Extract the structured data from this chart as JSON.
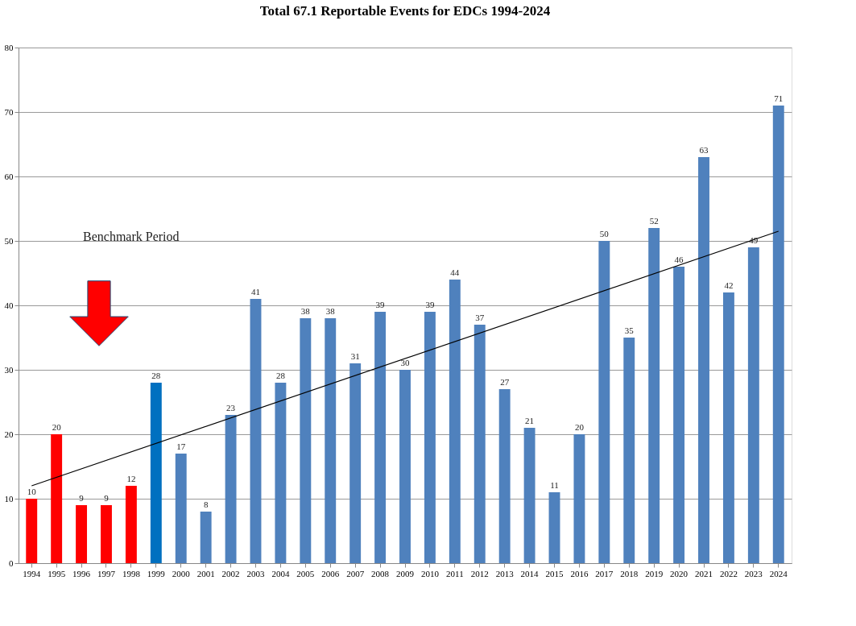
{
  "chart_data": {
    "type": "bar",
    "title": "Total 67.1 Reportable Events for EDCs 1994-2024",
    "categories": [
      "1994",
      "1995",
      "1996",
      "1997",
      "1998",
      "1999",
      "2000",
      "2001",
      "2002",
      "2003",
      "2004",
      "2005",
      "2006",
      "2007",
      "2008",
      "2009",
      "2010",
      "2011",
      "2012",
      "2013",
      "2014",
      "2015",
      "2016",
      "2017",
      "2018",
      "2019",
      "2020",
      "2021",
      "2022",
      "2023",
      "2024"
    ],
    "series": [
      {
        "value_labels": [
          "10",
          "20",
          "9",
          "9",
          "12",
          "28",
          "17",
          "8",
          "23",
          "41",
          "28",
          "38",
          "38",
          "31",
          "39",
          "30",
          "39",
          "44",
          "37",
          "27",
          "21",
          "11",
          "20",
          "50",
          "35",
          "52",
          "46",
          "63",
          "42",
          "49",
          "71"
        ],
        "values": [
          10,
          20,
          9,
          9,
          12,
          28,
          17,
          8,
          23,
          41,
          28,
          38,
          38,
          31,
          39,
          30,
          39,
          44,
          37,
          27,
          21,
          11,
          20,
          50,
          35,
          52,
          46,
          63,
          42,
          49,
          71
        ],
        "colors": [
          "#ff0000",
          "#ff0000",
          "#ff0000",
          "#ff0000",
          "#ff0000",
          "#0070c0",
          "#4f81bd",
          "#4f81bd",
          "#4f81bd",
          "#4f81bd",
          "#4f81bd",
          "#4f81bd",
          "#4f81bd",
          "#4f81bd",
          "#4f81bd",
          "#4f81bd",
          "#4f81bd",
          "#4f81bd",
          "#4f81bd",
          "#4f81bd",
          "#4f81bd",
          "#4f81bd",
          "#4f81bd",
          "#4f81bd",
          "#4f81bd",
          "#4f81bd",
          "#4f81bd",
          "#4f81bd",
          "#4f81bd",
          "#4f81bd",
          "#4f81bd"
        ]
      },
      {
        "type": "line",
        "values": [
          12,
          null,
          null,
          null,
          null,
          null,
          null,
          null,
          null,
          null,
          null,
          null,
          null,
          null,
          null,
          null,
          null,
          null,
          null,
          null,
          null,
          null,
          null,
          null,
          null,
          null,
          null,
          null,
          null,
          null,
          51.5
        ],
        "color": "#000000"
      }
    ],
    "ylim": [
      0,
      80
    ],
    "yticks": [
      0,
      10,
      20,
      30,
      40,
      50,
      60,
      70,
      80
    ],
    "grid": "y",
    "annotations": [
      "Benchmark Period"
    ]
  }
}
